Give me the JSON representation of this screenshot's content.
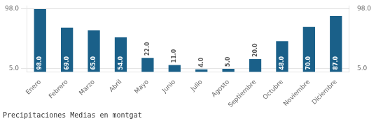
{
  "chart_data": {
    "type": "bar",
    "title": "Precipitaciones Medias en montgat",
    "categories": [
      "Enero",
      "Febrero",
      "Marzo",
      "Abril",
      "Mayo",
      "Junio",
      "Julio",
      "Agosto",
      "Septiembre",
      "Octubre",
      "Noviembre",
      "Diciembre"
    ],
    "values": [
      98.0,
      69.0,
      65.0,
      54.0,
      22.0,
      11.0,
      4.0,
      5.0,
      20.0,
      48.0,
      70.0,
      87.0
    ],
    "value_labels": [
      "98.0",
      "69.0",
      "65.0",
      "54.0",
      "22.0",
      "11.0",
      "4.0",
      "5.0",
      "20.0",
      "48.0",
      "70.0",
      "87.0"
    ],
    "color": "#1a6089",
    "ylim": [
      0,
      102.9
    ],
    "yticks": [
      {
        "value": 5.0,
        "label": "5.0"
      },
      {
        "value": 98.0,
        "label": "98.0"
      }
    ],
    "y2lim": [
      0,
      102.9
    ],
    "y2ticks": [
      {
        "value": 5.0,
        "label": "5.0"
      },
      {
        "value": 98.0,
        "label": "98.0"
      }
    ],
    "grid": true,
    "data_labels": true
  }
}
